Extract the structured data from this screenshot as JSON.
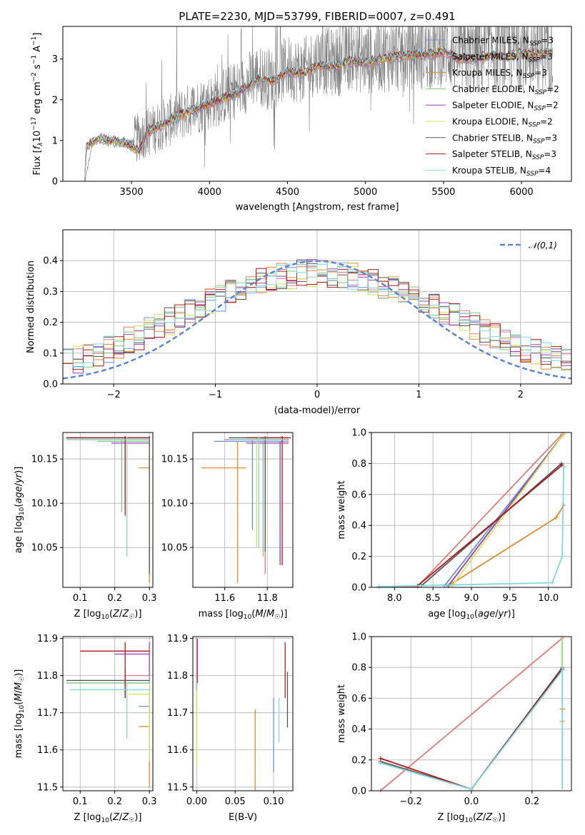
{
  "figure": {
    "title": "PLATE=2230, MJD=53799, FIBERID=0007, z=0.491"
  },
  "legend_series": [
    {
      "name": "Chabrier MILES, N_SSP=3",
      "color": "#6a8fd6"
    },
    {
      "name": "Salpeter MILES, N_SSP=3",
      "color": "#e07b7b"
    },
    {
      "name": "Kroupa MILES, N_SSP=3",
      "color": "#e08a2c"
    },
    {
      "name": "Chabrier ELODIE, N_SSP=2",
      "color": "#7fc47f"
    },
    {
      "name": "Salpeter ELODIE, N_SSP=2",
      "color": "#9a3fb5"
    },
    {
      "name": "Kroupa ELODIE, N_SSP=2",
      "color": "#d8e05a"
    },
    {
      "name": "Chabrier STELIB, N_SSP=3",
      "color": "#555555"
    },
    {
      "name": "Salpeter STELIB, N_SSP=3",
      "color": "#b01818"
    },
    {
      "name": "Kroupa STELIB, N_SSP=4",
      "color": "#80d8e0"
    }
  ],
  "chart_data": [
    {
      "id": "spectrum",
      "type": "line",
      "xlabel": "wavelength [Angstrom, rest frame]",
      "ylabel": "Flux [f_λ 10^-17 erg cm^-2 s^-1 A^-1]",
      "xlim": [
        3060,
        6320
      ],
      "ylim": [
        0,
        3.8
      ],
      "xticks": [
        3500,
        4000,
        4500,
        5000,
        5500,
        6000
      ],
      "yticks": [
        0,
        1,
        2,
        3
      ],
      "grid": false,
      "legend": "top-right",
      "data_color": "#808080",
      "data_envelope": {
        "x": [
          3200,
          3250,
          3300,
          3350,
          3400,
          3450,
          3500,
          3550,
          3600,
          3700,
          3800,
          3900,
          4000,
          4100,
          4200,
          4300,
          4400,
          4500,
          4600,
          4700,
          4800,
          4900,
          5000,
          5100,
          5200,
          5300,
          5400,
          5500,
          5600,
          5700,
          5800,
          5900,
          6000,
          6100,
          6200
        ],
        "y": [
          0.0,
          0.9,
          1.1,
          1.05,
          1.0,
          1.0,
          0.95,
          1.1,
          1.2,
          1.4,
          1.6,
          1.8,
          1.95,
          2.1,
          2.3,
          2.6,
          2.5,
          2.8,
          2.7,
          3.0,
          2.9,
          3.1,
          3.0,
          3.1,
          3.1,
          3.2,
          3.2,
          3.3,
          3.1,
          3.1,
          3.2,
          3.2,
          3.3,
          3.2,
          3.3
        ]
      },
      "model_curve": {
        "x": [
          3200,
          3210,
          3250,
          3300,
          3350,
          3400,
          3450,
          3500,
          3550,
          3600,
          3700,
          3800,
          3900,
          4000,
          4100,
          4200,
          4300,
          4400,
          4500,
          4600,
          4700,
          4800,
          4900,
          5000,
          5100,
          5200,
          5300,
          5400,
          5500,
          5600,
          5700,
          5800,
          5900,
          6000,
          6100,
          6200
        ],
        "y": [
          0.0,
          0.85,
          0.95,
          1.05,
          1.0,
          0.97,
          0.95,
          0.85,
          0.75,
          1.2,
          1.4,
          1.6,
          1.75,
          1.9,
          2.05,
          2.2,
          2.5,
          2.45,
          2.7,
          2.65,
          2.85,
          2.8,
          2.95,
          2.9,
          3.0,
          3.05,
          3.1,
          3.1,
          3.2,
          3.0,
          3.0,
          3.1,
          3.05,
          3.15,
          3.1,
          3.2
        ]
      }
    },
    {
      "id": "residuals",
      "type": "step-histogram",
      "xlabel": "(data-model)/error",
      "ylabel": "Normed distribution",
      "xlim": [
        -2.5,
        2.5
      ],
      "ylim": [
        0,
        0.5
      ],
      "xticks": [
        -2,
        -1,
        0,
        1,
        2
      ],
      "yticks": [
        0.0,
        0.1,
        0.2,
        0.3,
        0.4
      ],
      "grid": true,
      "legend": "top-right",
      "reference_curve": {
        "name": "𝒩(0,1)",
        "style": "dashed",
        "color": "#5b84d6"
      }
    },
    {
      "id": "age_vs_Z",
      "type": "errorbar",
      "xlabel": "Z [log10(Z/Z☉)]",
      "ylabel": "age  [log10(age/yr)]",
      "xlim": [
        0.05,
        0.31
      ],
      "ylim": [
        10.005,
        10.18
      ],
      "xticks": [
        0.1,
        0.2,
        0.3
      ],
      "yticks": [
        10.05,
        10.1,
        10.15
      ],
      "grid": true,
      "points": [
        {
          "x": 0.3,
          "y": 10.174,
          "xmin": 0.06,
          "xmax": 0.3,
          "ymin": 10.17,
          "ymax": 10.176
        },
        {
          "x": 0.23,
          "y": 10.172,
          "xmin": 0.06,
          "xmax": 0.3,
          "ymin": 10.085,
          "ymax": 10.175
        },
        {
          "x": 0.3,
          "y": 10.14,
          "xmin": 0.27,
          "xmax": 0.3,
          "ymin": 10.01,
          "ymax": 10.17
        },
        {
          "x": 0.22,
          "y": 10.17,
          "xmin": 0.15,
          "xmax": 0.3,
          "ymin": 10.09,
          "ymax": 10.172
        },
        {
          "x": 0.3,
          "y": 10.168,
          "xmin": 0.19,
          "xmax": 0.3,
          "ymin": 10.03,
          "ymax": 10.175
        },
        {
          "x": 0.3,
          "y": 10.172,
          "xmin": 0.21,
          "xmax": 0.3,
          "ymin": 10.05,
          "ymax": 10.175
        },
        {
          "x": 0.3,
          "y": 10.174,
          "xmin": 0.06,
          "xmax": 0.3,
          "ymin": 10.02,
          "ymax": 10.176
        },
        {
          "x": 0.23,
          "y": 10.174,
          "xmin": 0.06,
          "xmax": 0.3,
          "ymin": 10.087,
          "ymax": 10.176
        },
        {
          "x": 0.235,
          "y": 10.172,
          "xmin": 0.06,
          "xmax": 0.3,
          "ymin": 10.04,
          "ymax": 10.175
        }
      ]
    },
    {
      "id": "age_vs_mass",
      "type": "errorbar",
      "xlabel": "mass [log10(M/M☉)]",
      "ylabel": "",
      "xlim": [
        11.45,
        11.92
      ],
      "ylim": [
        10.005,
        10.18
      ],
      "xticks": [
        11.6,
        11.8
      ],
      "yticks": [
        10.05,
        10.1,
        10.15
      ],
      "grid": true,
      "points": [
        {
          "x": 11.73,
          "y": 10.17,
          "xmin": 11.55,
          "xmax": 11.9,
          "ymin": 10.07,
          "ymax": 10.172
        },
        {
          "x": 11.79,
          "y": 10.172,
          "xmin": 11.6,
          "xmax": 11.9,
          "ymin": 10.02,
          "ymax": 10.175
        },
        {
          "x": 11.66,
          "y": 10.14,
          "xmin": 11.49,
          "xmax": 11.7,
          "ymin": 10.01,
          "ymax": 10.17
        },
        {
          "x": 11.78,
          "y": 10.172,
          "xmin": 11.65,
          "xmax": 11.88,
          "ymin": 10.04,
          "ymax": 10.175
        },
        {
          "x": 11.86,
          "y": 10.168,
          "xmin": 11.7,
          "xmax": 11.9,
          "ymin": 10.03,
          "ymax": 10.17
        },
        {
          "x": 11.75,
          "y": 10.172,
          "xmin": 11.62,
          "xmax": 11.88,
          "ymin": 10.05,
          "ymax": 10.175
        },
        {
          "x": 11.79,
          "y": 10.174,
          "xmin": 11.62,
          "xmax": 11.9,
          "ymin": 10.045,
          "ymax": 10.176
        },
        {
          "x": 11.87,
          "y": 10.174,
          "xmin": 11.7,
          "xmax": 11.91,
          "ymin": 10.03,
          "ymax": 10.176
        },
        {
          "x": 11.76,
          "y": 10.172,
          "xmin": 11.62,
          "xmax": 11.88,
          "ymin": 10.05,
          "ymax": 10.175
        }
      ]
    },
    {
      "id": "massweight_vs_age",
      "type": "line",
      "xlabel": "age  [log10(age/yr)]",
      "ylabel": "mass weight",
      "xlim": [
        7.7,
        10.3
      ],
      "ylim": [
        0,
        1
      ],
      "xticks": [
        8.0,
        8.5,
        9.0,
        9.5,
        10.0
      ],
      "yticks": [
        0.0,
        0.2,
        0.4,
        0.6,
        0.8,
        1.0
      ],
      "grid": true,
      "series": [
        {
          "color": "#6a8fd6",
          "x": [
            8.65,
            10.2
          ],
          "y": [
            0.01,
            0.99
          ]
        },
        {
          "color": "#e07b7b",
          "x": [
            7.8,
            8.3,
            10.18
          ],
          "y": [
            0.005,
            0.005,
            0.99
          ]
        },
        {
          "color": "#e08a2c",
          "x": [
            8.7,
            10.1,
            10.2
          ],
          "y": [
            0.01,
            0.45,
            0.53
          ]
        },
        {
          "color": "#7fc47f",
          "x": [
            8.7,
            10.2
          ],
          "y": [
            0.01,
            0.99
          ]
        },
        {
          "color": "#9a3fb5",
          "x": [
            8.7,
            10.2
          ],
          "y": [
            0.01,
            0.99
          ]
        },
        {
          "color": "#d8e05a",
          "x": [
            8.75,
            10.2
          ],
          "y": [
            0.01,
            0.99
          ]
        },
        {
          "color": "#555555",
          "x": [
            8.35,
            10.17
          ],
          "y": [
            0.01,
            0.8
          ]
        },
        {
          "color": "#b01818",
          "x": [
            8.3,
            10.18
          ],
          "y": [
            0.01,
            0.79
          ]
        },
        {
          "color": "#80d8e0",
          "x": [
            7.8,
            10.05,
            10.18,
            10.2
          ],
          "y": [
            0.005,
            0.03,
            0.2,
            0.78
          ]
        }
      ]
    },
    {
      "id": "mass_vs_Z",
      "type": "errorbar",
      "xlabel": "Z [log10(Z/Z☉)]",
      "ylabel": "mass [log10(M/M☉)]",
      "xlim": [
        0.05,
        0.31
      ],
      "ylim": [
        11.49,
        11.905
      ],
      "xticks": [
        0.1,
        0.2,
        0.3
      ],
      "yticks": [
        11.5,
        11.6,
        11.7,
        11.8,
        11.9
      ],
      "grid": true,
      "points": [
        {
          "x": 0.3,
          "y": 11.717,
          "xmin": 0.27,
          "xmax": 0.3,
          "ymin": 11.63,
          "ymax": 11.8
        },
        {
          "x": 0.23,
          "y": 11.8,
          "xmin": 0.23,
          "xmax": 0.3,
          "ymin": 11.74,
          "ymax": 11.82
        },
        {
          "x": 0.3,
          "y": 11.663,
          "xmin": 0.27,
          "xmax": 0.3,
          "ymin": 11.5,
          "ymax": 11.72
        },
        {
          "x": 0.23,
          "y": 11.78,
          "xmin": 0.06,
          "xmax": 0.3,
          "ymin": 11.74,
          "ymax": 11.8
        },
        {
          "x": 0.3,
          "y": 11.858,
          "xmin": 0.2,
          "xmax": 0.3,
          "ymin": 11.8,
          "ymax": 11.89
        },
        {
          "x": 0.3,
          "y": 11.75,
          "xmin": 0.24,
          "xmax": 0.3,
          "ymin": 11.57,
          "ymax": 11.78
        },
        {
          "x": 0.23,
          "y": 11.787,
          "xmin": 0.06,
          "xmax": 0.3,
          "ymin": 11.74,
          "ymax": 11.8
        },
        {
          "x": 0.23,
          "y": 11.866,
          "xmin": 0.1,
          "xmax": 0.3,
          "ymin": 11.74,
          "ymax": 11.89
        },
        {
          "x": 0.235,
          "y": 11.762,
          "xmin": 0.07,
          "xmax": 0.3,
          "ymin": 11.63,
          "ymax": 11.78
        }
      ]
    },
    {
      "id": "mass_vs_ebv",
      "type": "errorbar",
      "xlabel": "E(B-V)",
      "ylabel": "",
      "xlim": [
        -0.005,
        0.125
      ],
      "ylim": [
        11.49,
        11.905
      ],
      "xticks": [
        0.0,
        0.05,
        0.1
      ],
      "yticks": [
        11.5,
        11.6,
        11.7,
        11.8,
        11.9
      ],
      "grid": true,
      "points": [
        {
          "x": 0.1,
          "y": 11.64,
          "ymin": 11.54,
          "ymax": 11.74
        },
        {
          "x": 0.0,
          "y": 11.79,
          "ymin": 11.74,
          "ymax": 11.9
        },
        {
          "x": 0.076,
          "y": 11.6,
          "ymin": 11.49,
          "ymax": 11.71
        },
        {
          "x": 0.0,
          "y": 11.7,
          "ymin": 11.62,
          "ymax": 11.79
        },
        {
          "x": 0.001,
          "y": 11.84,
          "ymin": 11.78,
          "ymax": 11.9
        },
        {
          "x": 0.0,
          "y": 11.66,
          "ymin": 11.56,
          "ymax": 11.76
        },
        {
          "x": 0.118,
          "y": 11.73,
          "ymin": 11.66,
          "ymax": 11.81
        },
        {
          "x": 0.115,
          "y": 11.82,
          "ymin": 11.74,
          "ymax": 11.89
        },
        {
          "x": 0.107,
          "y": 11.68,
          "ymin": 11.62,
          "ymax": 11.74
        }
      ]
    },
    {
      "id": "massweight_vs_Z",
      "type": "line",
      "xlabel": "Z [log10(Z/Z☉)]",
      "ylabel": "mass weight",
      "xlim": [
        -0.33,
        0.33
      ],
      "ylim": [
        0,
        1
      ],
      "xticks": [
        -0.2,
        0.0,
        0.2
      ],
      "yticks": [
        0.0,
        0.2,
        0.4,
        0.6,
        0.8,
        1.0
      ],
      "grid": true,
      "series": [
        {
          "color": "#e07b7b",
          "x": [
            -0.3,
            0.3
          ],
          "y": [
            0.0,
            0.99
          ]
        },
        {
          "color": "#555555",
          "x": [
            -0.3,
            0.0,
            0.3
          ],
          "y": [
            0.19,
            0.01,
            0.8
          ]
        },
        {
          "color": "#b01818",
          "x": [
            -0.3,
            0.0,
            0.3
          ],
          "y": [
            0.21,
            0.01,
            0.79
          ]
        },
        {
          "color": "#80d8e0",
          "x": [
            -0.3,
            0.0,
            0.3
          ],
          "y": [
            0.18,
            0.01,
            0.78
          ]
        }
      ],
      "vertical_markers_at_x": 0.3
    }
  ]
}
